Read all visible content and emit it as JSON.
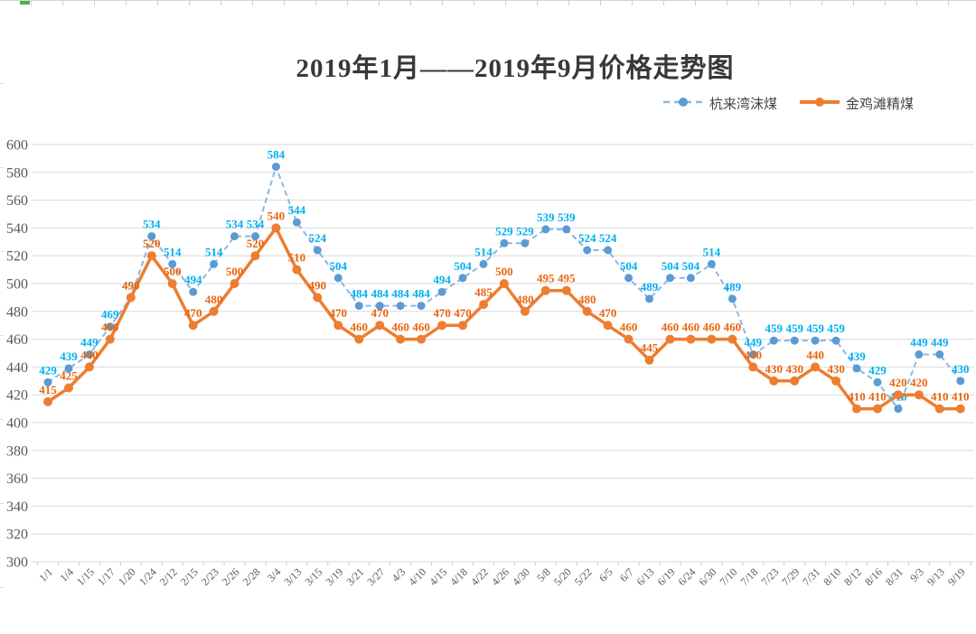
{
  "title": "2019年1月——2019年9月价格走势图",
  "chart_data": {
    "type": "line",
    "title": "2019年1月——2019年9月价格走势图",
    "categories": [
      "1/1",
      "1/4",
      "1/15",
      "1/17",
      "1/20",
      "1/24",
      "2/12",
      "2/15",
      "2/23",
      "2/26",
      "2/28",
      "3/4",
      "3/13",
      "3/15",
      "3/19",
      "3/21",
      "3/27",
      "4/3",
      "4/10",
      "4/15",
      "4/18",
      "4/22",
      "4/26",
      "4/30",
      "5/8",
      "5/20",
      "5/22",
      "6/5",
      "6/7",
      "6/13",
      "6/19",
      "6/24",
      "6/30",
      "7/10",
      "7/18",
      "7/23",
      "7/29",
      "7/31",
      "8/10",
      "8/12",
      "8/16",
      "8/31",
      "9/3",
      "9/13",
      "9/19"
    ],
    "series": [
      {
        "name": "杭来湾沫煤",
        "line_style": "dashed",
        "color": "#5B9BD5",
        "line_color": "#8CB6E2",
        "label_color": "#00B0F0",
        "values": [
          429,
          439,
          449,
          469,
          490,
          534,
          514,
          494,
          514,
          534,
          534,
          584,
          544,
          524,
          504,
          484,
          484,
          484,
          484,
          494,
          504,
          514,
          529,
          529,
          539,
          539,
          524,
          524,
          504,
          489,
          504,
          504,
          514,
          489,
          449,
          459,
          459,
          459,
          459,
          439,
          429,
          410,
          449,
          449,
          430
        ]
      },
      {
        "name": "金鸡滩精煤",
        "line_style": "solid",
        "color": "#ED7D31",
        "line_color": "#ED7D31",
        "label_color": "#E9650E",
        "values": [
          415,
          425,
          440,
          460,
          490,
          520,
          500,
          470,
          480,
          500,
          520,
          540,
          510,
          490,
          470,
          460,
          470,
          460,
          460,
          470,
          470,
          485,
          500,
          480,
          495,
          495,
          480,
          470,
          460,
          445,
          460,
          460,
          460,
          460,
          440,
          430,
          430,
          440,
          430,
          410,
          410,
          420,
          420,
          410,
          410
        ]
      }
    ],
    "ylim": [
      300,
      600
    ],
    "ytick_step": 20,
    "grid": true,
    "grid_color": "#D9D9D9",
    "axis_text_color": "#595959",
    "legend_position": "top-right",
    "xlabel": "",
    "ylabel": ""
  }
}
